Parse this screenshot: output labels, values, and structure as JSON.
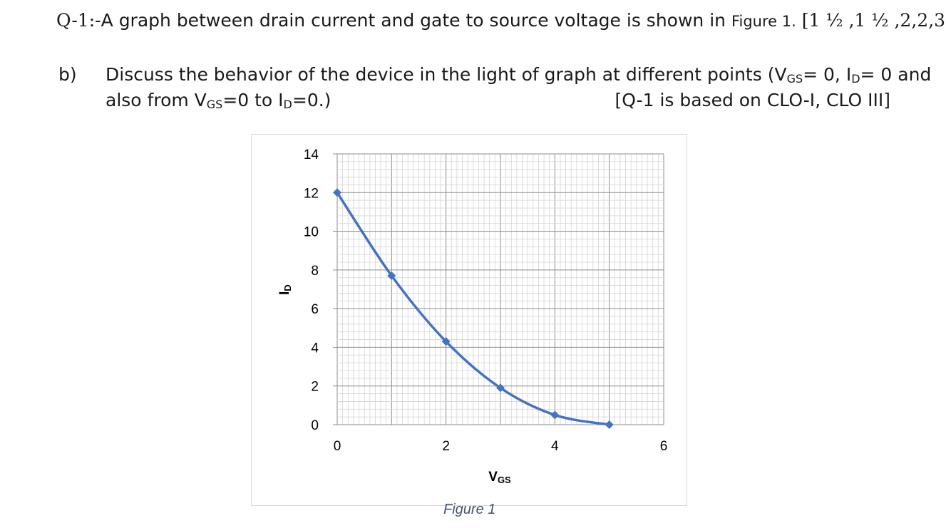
{
  "question": {
    "number": "Q-1:-",
    "text": "A graph between drain current and gate to source voltage is shown in ",
    "figure_ref": "Figure 1.",
    "marks": " [1 ½ ,1 ½ ,2,2,3]"
  },
  "part": {
    "label": "b)",
    "line1_a": "Discuss the behavior of the device in the light of graph at different points (V",
    "line1_b": "= 0, I",
    "line1_c": "= 0 and",
    "line2_a": "also from V",
    "line2_b": "=0 to I",
    "line2_c": "=0.)",
    "sub_gs": "GS",
    "sub_d": "D",
    "clo_note": "[Q-1 is based on CLO-I, CLO III]"
  },
  "caption": "Figure 1",
  "chart_data": {
    "type": "scatter",
    "title": "",
    "xlabel_main": "V",
    "xlabel_sub": "GS",
    "ylabel_main": "I",
    "ylabel_sub": "D",
    "xlim": [
      0,
      6
    ],
    "ylim": [
      0,
      14
    ],
    "x_ticks": [
      0,
      2,
      4,
      6
    ],
    "y_ticks": [
      0,
      2,
      4,
      6,
      8,
      10,
      12,
      14
    ],
    "grid": true,
    "series": [
      {
        "color": "#4472c4",
        "x": [
          0,
          1,
          2,
          3,
          4,
          5
        ],
        "y": [
          12,
          7.7,
          4.3,
          1.9,
          0.5,
          0
        ]
      }
    ]
  }
}
